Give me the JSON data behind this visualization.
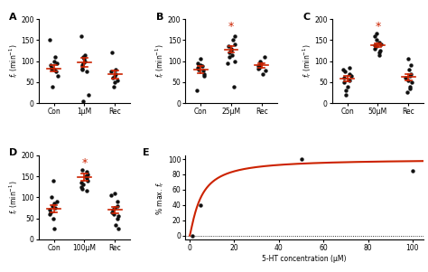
{
  "panel_A": {
    "label": "A",
    "xlabel_groups": [
      "Con",
      "1μM",
      "Rec"
    ],
    "ylabel": "$f_r$ (min$^{-1}$)",
    "ylim": [
      0,
      200
    ],
    "yticks": [
      0,
      50,
      100,
      150,
      200
    ],
    "means": [
      83,
      97,
      68
    ],
    "sems": [
      8,
      10,
      9
    ],
    "dots": [
      [
        38,
        65,
        75,
        80,
        82,
        85,
        90,
        95,
        100,
        110,
        150
      ],
      [
        20,
        75,
        80,
        83,
        90,
        95,
        100,
        105,
        110,
        115,
        160,
        5
      ],
      [
        40,
        50,
        55,
        60,
        65,
        70,
        75,
        80,
        120
      ]
    ],
    "star": false,
    "star_group": 1
  },
  "panel_B": {
    "label": "B",
    "xlabel_groups": [
      "Con",
      "25μM",
      "Rec"
    ],
    "ylabel": "$f_r$ (min$^{-1}$)",
    "ylim": [
      0,
      200
    ],
    "yticks": [
      0,
      50,
      100,
      150,
      200
    ],
    "means": [
      80,
      128,
      90
    ],
    "sems": [
      8,
      8,
      5
    ],
    "dots": [
      [
        30,
        65,
        70,
        78,
        80,
        85,
        88,
        90,
        95,
        105
      ],
      [
        95,
        100,
        110,
        115,
        120,
        125,
        130,
        135,
        140,
        150,
        160,
        40
      ],
      [
        70,
        78,
        82,
        85,
        88,
        90,
        95,
        100,
        110
      ]
    ],
    "star": true,
    "star_group": 1
  },
  "panel_C": {
    "label": "C",
    "xlabel_groups": [
      "Con",
      "50μM",
      "Rec"
    ],
    "ylabel": "$f_r$ (min$^{-1}$)",
    "ylim": [
      0,
      200
    ],
    "yticks": [
      0,
      50,
      100,
      150,
      200
    ],
    "means": [
      58,
      138,
      62
    ],
    "sems": [
      7,
      5,
      8
    ],
    "dots": [
      [
        20,
        30,
        40,
        50,
        55,
        60,
        65,
        70,
        75,
        80,
        85
      ],
      [
        115,
        120,
        125,
        130,
        135,
        138,
        140,
        145,
        150,
        160,
        165
      ],
      [
        25,
        35,
        40,
        50,
        55,
        60,
        65,
        70,
        80,
        90,
        105
      ]
    ],
    "star": true,
    "star_group": 1
  },
  "panel_D": {
    "label": "D",
    "xlabel_groups": [
      "Con",
      "100μM",
      "Rec"
    ],
    "ylabel": "$f_r$ (min$^{-1}$)",
    "ylim": [
      0,
      200
    ],
    "yticks": [
      0,
      50,
      100,
      150,
      200
    ],
    "means": [
      73,
      148,
      70
    ],
    "sems": [
      9,
      8,
      8
    ],
    "dots": [
      [
        25,
        50,
        60,
        65,
        70,
        75,
        80,
        85,
        90,
        100,
        140
      ],
      [
        115,
        120,
        125,
        130,
        135,
        140,
        145,
        150,
        155,
        160,
        165
      ],
      [
        25,
        35,
        50,
        55,
        60,
        65,
        70,
        75,
        80,
        90,
        105,
        110
      ]
    ],
    "star": true,
    "star_group": 1
  },
  "panel_E": {
    "label": "E",
    "xlabel": "5-HT concentration (μM)",
    "ylabel": "% max. $f_r$",
    "ylim": [
      -5,
      105
    ],
    "xlim": [
      -2,
      105
    ],
    "yticks": [
      0,
      20,
      40,
      60,
      80,
      100
    ],
    "xticks": [
      0,
      20,
      40,
      60,
      80,
      100
    ],
    "data_x": [
      1,
      5,
      50,
      100
    ],
    "data_y": [
      0,
      40,
      100,
      85
    ],
    "ec50": 5.0,
    "hill": 1.2,
    "ymax": 100
  },
  "dot_color": "#111111",
  "line_color": "#cc2200",
  "dot_size": 10,
  "bg_color": "#ffffff"
}
